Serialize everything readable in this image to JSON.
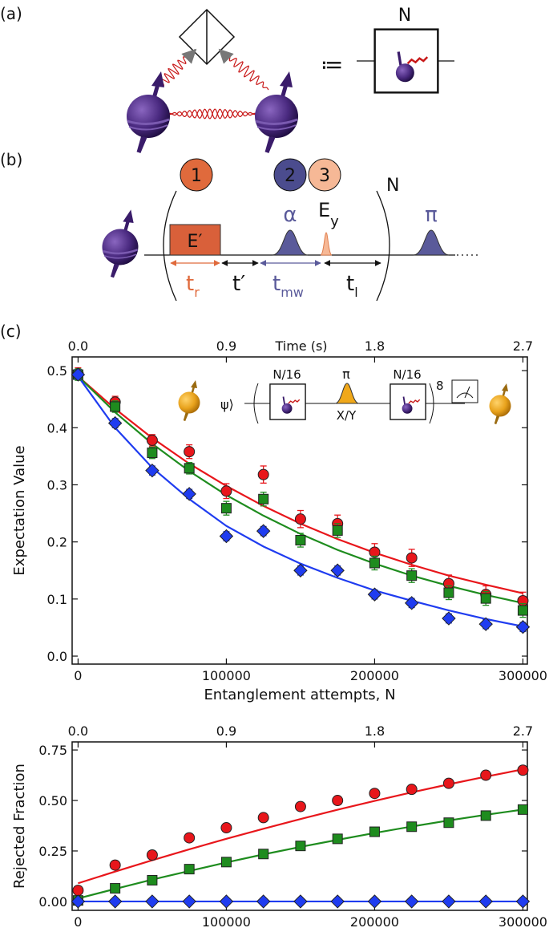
{
  "panel_a": {
    "label": "(a)",
    "assign": "≔",
    "box_label": "N"
  },
  "panel_b": {
    "label": "(b)",
    "steps": [
      "1",
      "2",
      "3"
    ],
    "repeat": "N",
    "pulse_reset": "E′",
    "pulse_mw": "α",
    "pulse_ey": {
      "main": "E",
      "sub": "y"
    },
    "pulse_pi": "π",
    "times": [
      {
        "main": "t",
        "sub": "r"
      },
      {
        "main": "t′",
        "sub": ""
      },
      {
        "main": "t",
        "sub": "mw"
      },
      {
        "main": "t",
        "sub": "l"
      }
    ]
  },
  "panel_c": {
    "label": "(c)",
    "inset": {
      "state": "ψ⟩",
      "block_left": "N/16",
      "pulse": "π",
      "pulse_axis": "X/Y",
      "block_right": "N/16",
      "repeat": "8"
    }
  },
  "chart_data": [
    {
      "type": "scatter",
      "ylabel": "Expectation Value",
      "xlabel": "Entanglement attempts, N",
      "x2label": "Time (s)",
      "x": [
        0,
        25000,
        50000,
        75000,
        100000,
        125000,
        150000,
        175000,
        200000,
        225000,
        250000,
        275000,
        300000
      ],
      "xlim": [
        -4000,
        303000
      ],
      "xticks": [
        0,
        100000,
        200000,
        300000
      ],
      "x2lim": [
        -0.036,
        2.727
      ],
      "x2ticks": [
        {
          "value": 0,
          "label": "0.0"
        },
        0.9,
        1.8,
        2.7
      ],
      "ylim": [
        -0.014,
        0.524
      ],
      "yticks": [
        {
          "value": 0,
          "label": "0.0"
        },
        0.1,
        0.2,
        0.3,
        0.4,
        0.5
      ],
      "series": [
        {
          "color": "#e8161b",
          "marker": "circle",
          "values": [
            0.495,
            0.445,
            0.378,
            0.358,
            0.289,
            0.318,
            0.24,
            0.232,
            0.182,
            0.172,
            0.127,
            0.108,
            0.097
          ],
          "errors": [
            0.01,
            0.01,
            0.01,
            0.012,
            0.013,
            0.015,
            0.015,
            0.015,
            0.015,
            0.015,
            0.015,
            0.015,
            0.015
          ],
          "fit": [
            0.49,
            0.433,
            0.382,
            0.337,
            0.298,
            0.263,
            0.232,
            0.205,
            0.181,
            0.16,
            0.141,
            0.125,
            0.11
          ]
        },
        {
          "color": "#1e8c1e",
          "marker": "square",
          "values": [
            0.493,
            0.437,
            0.356,
            0.329,
            0.259,
            0.275,
            0.203,
            0.22,
            0.163,
            0.141,
            0.111,
            0.101,
            0.08
          ],
          "errors": [
            0.01,
            0.01,
            0.01,
            0.01,
            0.012,
            0.012,
            0.012,
            0.012,
            0.012,
            0.012,
            0.012,
            0.012,
            0.012
          ],
          "fit": [
            0.49,
            0.427,
            0.372,
            0.324,
            0.282,
            0.246,
            0.214,
            0.186,
            0.162,
            0.141,
            0.123,
            0.107,
            0.093
          ]
        },
        {
          "color": "#1f3cf0",
          "marker": "diamond",
          "values": [
            0.493,
            0.408,
            0.325,
            0.284,
            0.21,
            0.219,
            0.15,
            0.15,
            0.108,
            0.093,
            0.066,
            0.056,
            0.051
          ],
          "errors": [
            0.008,
            0.008,
            0.008,
            0.008,
            0.008,
            0.008,
            0.008,
            0.008,
            0.008,
            0.008,
            0.008,
            0.008,
            0.008
          ],
          "fit": [
            0.49,
            0.4,
            0.33,
            0.275,
            0.228,
            0.192,
            0.162,
            0.137,
            0.115,
            0.097,
            0.08,
            0.065,
            0.052
          ]
        }
      ]
    },
    {
      "type": "scatter",
      "ylabel": "Rejected Fraction",
      "x": [
        0,
        25000,
        50000,
        75000,
        100000,
        125000,
        150000,
        175000,
        200000,
        225000,
        250000,
        275000,
        300000
      ],
      "xlim": [
        -4000,
        303000
      ],
      "xticks": [
        0,
        100000,
        200000,
        300000
      ],
      "x2lim": [
        -0.036,
        2.727
      ],
      "x2ticks": [
        {
          "value": 0,
          "label": "0.0"
        },
        0.9,
        1.8,
        2.7
      ],
      "ylim": [
        -0.044,
        0.79
      ],
      "yticks": [
        {
          "value": 0,
          "label": "0.00"
        },
        {
          "value": 0.25,
          "label": "0.25"
        },
        {
          "value": 0.5,
          "label": "0.50"
        },
        {
          "value": 0.75,
          "label": "0.75"
        }
      ],
      "series": [
        {
          "color": "#e8161b",
          "marker": "circle",
          "values": [
            0.055,
            0.18,
            0.23,
            0.315,
            0.365,
            0.415,
            0.47,
            0.5,
            0.535,
            0.555,
            0.585,
            0.625,
            0.65
          ],
          "fit": [
            0.09,
            0.148,
            0.204,
            0.258,
            0.31,
            0.36,
            0.408,
            0.454,
            0.498,
            0.54,
            0.58,
            0.618,
            0.654
          ]
        },
        {
          "color": "#1e8c1e",
          "marker": "square",
          "values": [
            0.005,
            0.065,
            0.105,
            0.16,
            0.195,
            0.235,
            0.275,
            0.31,
            0.345,
            0.37,
            0.39,
            0.425,
            0.455
          ],
          "fit": [
            0.015,
            0.062,
            0.108,
            0.151,
            0.193,
            0.233,
            0.27,
            0.305,
            0.339,
            0.371,
            0.401,
            0.429,
            0.455
          ]
        },
        {
          "color": "#1f3cf0",
          "marker": "diamond",
          "values": [
            0,
            0,
            0,
            0,
            0,
            0,
            0,
            0,
            0,
            0,
            0,
            0,
            0
          ],
          "fit": [
            0,
            0,
            0,
            0,
            0,
            0,
            0,
            0,
            0,
            0,
            0,
            0,
            0
          ]
        }
      ]
    }
  ]
}
